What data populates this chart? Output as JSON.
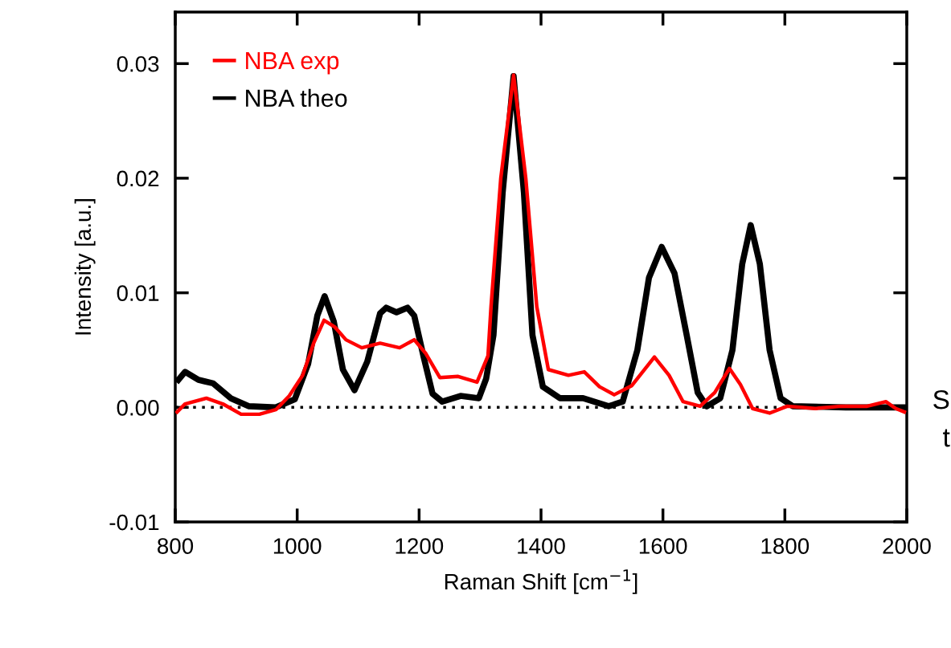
{
  "chart_data": {
    "type": "line",
    "xlabel": "Raman Shift [cm$^{−1}$]",
    "ylabel": "Intensity [a.u.]",
    "xlim": [
      800,
      2000
    ],
    "ylim": [
      -0.01,
      0.0345
    ],
    "xticks": [
      800,
      1000,
      1200,
      1400,
      1600,
      1800,
      2000
    ],
    "yticks": [
      {
        "value": -0.01,
        "label": "-0.01"
      },
      {
        "value": 0,
        "label": "0.00"
      },
      {
        "value": 0.01,
        "label": "0.01"
      },
      {
        "value": 0.02,
        "label": "0.02"
      },
      {
        "value": 0.03,
        "label": "0.03"
      }
    ],
    "grid": false,
    "legend": "top left",
    "marker": "none",
    "line_style": "solid",
    "ref_lines": [
      {
        "axis": "y",
        "value": 0,
        "label": null,
        "color": "#000000",
        "line_style": "dotted"
      }
    ],
    "annotations": [
      "S",
      "t"
    ],
    "series": [
      {
        "name": "NBA exp",
        "color": "#ff0000",
        "x": [
          803,
          816,
          851,
          878,
          908,
          938,
          965,
          987,
          1009,
          1027,
          1044,
          1062,
          1080,
          1106,
          1136,
          1168,
          1192,
          1211,
          1234,
          1264,
          1295,
          1313,
          1318,
          1334,
          1355,
          1375,
          1393,
          1412,
          1445,
          1471,
          1496,
          1520,
          1549,
          1586,
          1610,
          1633,
          1661,
          1685,
          1709,
          1727,
          1747,
          1775,
          1804,
          1850,
          1892,
          1935,
          1966,
          1982,
          1996
        ],
        "values": [
          -0.0004,
          0.0003,
          0.0008,
          0.0003,
          -0.0006,
          -0.0006,
          -0.0002,
          0.001,
          0.0028,
          0.0056,
          0.0076,
          0.007,
          0.0059,
          0.0052,
          0.0056,
          0.0052,
          0.0059,
          0.0047,
          0.0026,
          0.0027,
          0.0022,
          0.0045,
          0.0088,
          0.02,
          0.029,
          0.02,
          0.0088,
          0.0033,
          0.0028,
          0.0031,
          0.0018,
          0.0011,
          0.0019,
          0.0044,
          0.0028,
          0.0005,
          0.0001,
          0.0013,
          0.0034,
          0.002,
          -0.0001,
          -0.0005,
          0.0001,
          -0.0001,
          0.0001,
          0.0001,
          0.0005,
          -0.0001,
          -0.0004
        ]
      },
      {
        "name": "NBA theo",
        "color": "#000000",
        "x": [
          805,
          816,
          838,
          862,
          891,
          921,
          965,
          996,
          1018,
          1033,
          1045,
          1060,
          1075,
          1094,
          1115,
          1136,
          1146,
          1163,
          1181,
          1192,
          1207,
          1222,
          1238,
          1268,
          1298,
          1310,
          1322,
          1337,
          1355,
          1372,
          1386,
          1403,
          1431,
          1469,
          1511,
          1534,
          1558,
          1577,
          1598,
          1619,
          1639,
          1657,
          1672,
          1694,
          1714,
          1730,
          1744,
          1759,
          1775,
          1793,
          1813,
          1900,
          2000
        ],
        "values": [
          0.0024,
          0.0031,
          0.0024,
          0.0021,
          0.0008,
          0.0001,
          0.0,
          0.0007,
          0.0038,
          0.008,
          0.0097,
          0.0075,
          0.0033,
          0.0015,
          0.004,
          0.0082,
          0.0087,
          0.0083,
          0.0087,
          0.008,
          0.0045,
          0.0012,
          0.0005,
          0.001,
          0.0008,
          0.0025,
          0.0063,
          0.0187,
          0.0289,
          0.0187,
          0.0063,
          0.0018,
          0.0008,
          0.0008,
          0.0001,
          0.0005,
          0.005,
          0.0113,
          0.014,
          0.0117,
          0.0063,
          0.0013,
          0.0001,
          0.0008,
          0.005,
          0.0125,
          0.0159,
          0.0125,
          0.005,
          0.0008,
          0.0001,
          0.0,
          0.0
        ]
      }
    ]
  }
}
